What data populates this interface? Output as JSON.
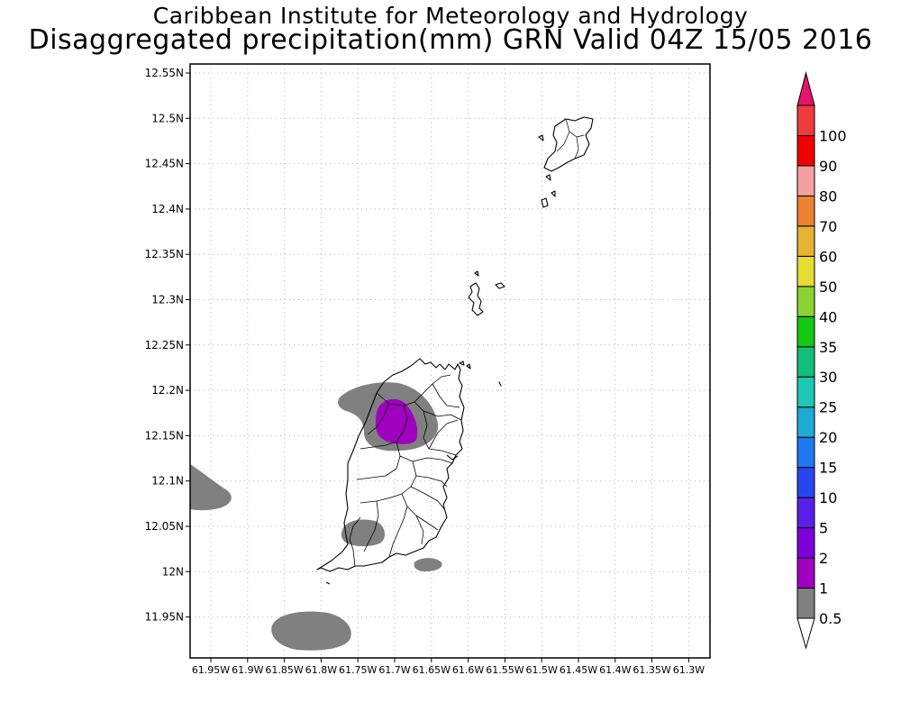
{
  "title": {
    "line1": "Caribbean Institute for Meteorology and Hydrology",
    "line2": "Disaggregated precipitation(mm) GRN Valid 04Z 15/05 2016"
  },
  "map": {
    "lat_labels": [
      "12.55N",
      "12.5N",
      "12.45N",
      "12.4N",
      "12.35N",
      "12.3N",
      "12.25N",
      "12.2N",
      "12.15N",
      "12.1N",
      "12.05N",
      "12N",
      "11.95N"
    ],
    "lon_labels": [
      "61.95W",
      "61.9W",
      "61.85W",
      "61.8W",
      "61.75W",
      "61.7W",
      "61.65W",
      "61.6W",
      "61.55W",
      "61.5W",
      "61.45W",
      "61.4W",
      "61.35W",
      "61.3W"
    ]
  },
  "colorbar": {
    "labels": [
      "0.5",
      "1",
      "2",
      "5",
      "10",
      "15",
      "20",
      "25",
      "30",
      "35",
      "40",
      "50",
      "60",
      "70",
      "80",
      "90",
      "100"
    ],
    "colors": [
      "#808080",
      "#a000c0",
      "#7d00dc",
      "#5a1ee6",
      "#2846f0",
      "#1e78f0",
      "#1eaad2",
      "#1ec8b4",
      "#14be78",
      "#14c814",
      "#8cd232",
      "#e6dc32",
      "#e6b432",
      "#ec8232",
      "#f5a0a0",
      "#f00000",
      "#ee3c3c"
    ],
    "top_arrow_color": "#e6146e"
  },
  "legend_mapping": {
    "gray": "0.5-1 mm",
    "purple": "1-2 mm"
  }
}
